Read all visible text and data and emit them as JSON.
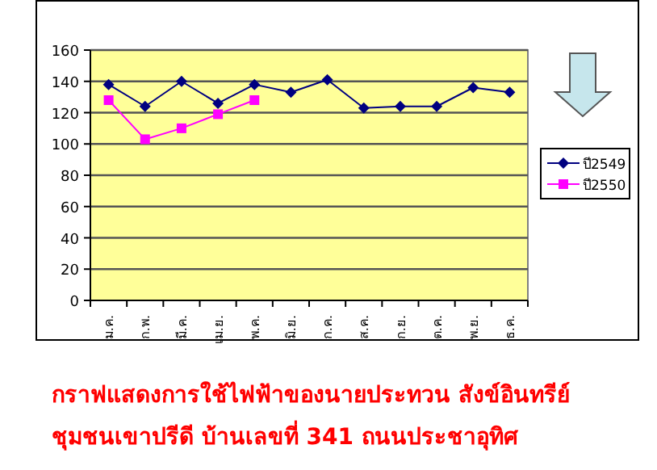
{
  "chart_data": {
    "type": "line",
    "title": "กราฟแสดงการใช้ไฟฟ้าของนายประทวน   สังข์อินทรีย์",
    "subtitle": "ชุมชนเขาปรีดี บ้านเลขที่ 341 ถนนประชาอุทิศ",
    "categories": [
      "ม.ค.",
      "ก.พ.",
      "มี.ค.",
      "เม.ย.",
      "พ.ค.",
      "มิ.ย.",
      "ก.ค.",
      "ส.ค.",
      "ก.ย.",
      "ต.ค.",
      "พ.ย.",
      "ธ.ค."
    ],
    "series": [
      {
        "name": "ปี2549",
        "color": "#000080",
        "marker": "diamond",
        "values": [
          138,
          124,
          140,
          126,
          138,
          133,
          141,
          123,
          124,
          124,
          136,
          133
        ]
      },
      {
        "name": "ปี2550",
        "color": "#ff00ff",
        "marker": "square",
        "values": [
          128,
          103,
          110,
          119,
          128,
          null,
          null,
          null,
          null,
          null,
          null,
          null
        ]
      }
    ],
    "ylim": [
      0,
      160
    ],
    "yticks": [
      0,
      20,
      40,
      60,
      80,
      100,
      120,
      140,
      160
    ],
    "grid": "y",
    "legend": "right",
    "line_style": "solid"
  }
}
